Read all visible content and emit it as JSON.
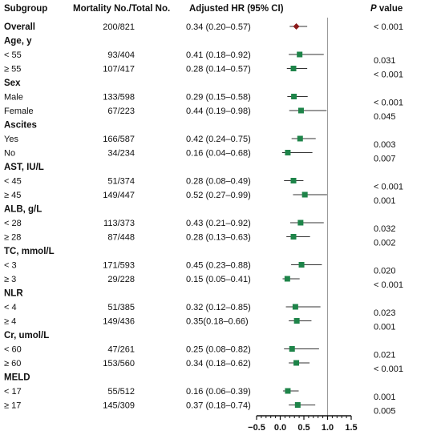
{
  "chart_data": {
    "type": "forest",
    "headers": {
      "subgroup": "Subgroup",
      "counts": "Mortality No./Total No.",
      "hr": "Adjusted HR (95% CI)",
      "p_italic": "P",
      "p_rest": " value"
    },
    "x_ticks": [
      "−0.5",
      "0.0",
      "0.5",
      "1.0",
      "1.5"
    ],
    "x_range": [
      -0.5,
      1.5
    ],
    "reference_line": 1.0,
    "rows": [
      {
        "label": "Overall",
        "bold": true,
        "counts": "200/821",
        "hr_text": "0.34 (0.20–0.57)",
        "hr": 0.34,
        "lo": 0.2,
        "hi": 0.57,
        "p": "< 0.001",
        "overall": true
      },
      {
        "label": "Age, y",
        "bold": true
      },
      {
        "label": "< 55",
        "counts": "93/404",
        "hr_text": "0.41 (0.18–0.92)",
        "hr": 0.41,
        "lo": 0.18,
        "hi": 0.92,
        "p": "0.031"
      },
      {
        "label": "≥ 55",
        "counts": "107/417",
        "hr_text": "0.28 (0.14–0.57)",
        "hr": 0.28,
        "lo": 0.14,
        "hi": 0.57,
        "p": "< 0.001"
      },
      {
        "label": "Sex",
        "bold": true
      },
      {
        "label": "Male",
        "counts": "133/598",
        "hr_text": "0.29 (0.15–0.58)",
        "hr": 0.29,
        "lo": 0.15,
        "hi": 0.58,
        "p": "< 0.001"
      },
      {
        "label": "Female",
        "counts": "67/223",
        "hr_text": "0.44 (0.19–0.98)",
        "hr": 0.44,
        "lo": 0.19,
        "hi": 0.98,
        "p": "0.045"
      },
      {
        "label": "Ascites",
        "bold": true
      },
      {
        "label": "Yes",
        "counts": "166/587",
        "hr_text": "0.42 (0.24–0.75)",
        "hr": 0.42,
        "lo": 0.24,
        "hi": 0.75,
        "p": "0.003"
      },
      {
        "label": "No",
        "counts": "34/234",
        "hr_text": "0.16 (0.04–0.68)",
        "hr": 0.16,
        "lo": 0.04,
        "hi": 0.68,
        "p": "0.007"
      },
      {
        "label": "AST, IU/L",
        "bold": true
      },
      {
        "label": "< 45",
        "counts": "51/374",
        "hr_text": "0.28 (0.08–0.49)",
        "hr": 0.28,
        "lo": 0.08,
        "hi": 0.49,
        "p": "< 0.001"
      },
      {
        "label": "≥ 45",
        "counts": "149/447",
        "hr_text": "0.52 (0.27–0.99)",
        "hr": 0.52,
        "lo": 0.27,
        "hi": 0.99,
        "p": "0.001"
      },
      {
        "label": "ALB, g/L",
        "bold": true
      },
      {
        "label": "< 28",
        "counts": "113/373",
        "hr_text": "0.43 (0.21–0.92)",
        "hr": 0.43,
        "lo": 0.21,
        "hi": 0.92,
        "p": "0.032"
      },
      {
        "label": "≥ 28",
        "counts": "87/448",
        "hr_text": "0.28 (0.13–0.63)",
        "hr": 0.28,
        "lo": 0.13,
        "hi": 0.63,
        "p": "0.002"
      },
      {
        "label": "TC, mmol/L",
        "bold": true
      },
      {
        "label": "< 3",
        "counts": "171/593",
        "hr_text": "0.45 (0.23–0.88)",
        "hr": 0.45,
        "lo": 0.23,
        "hi": 0.88,
        "p": "0.020"
      },
      {
        "label": "≥ 3",
        "counts": "29/228",
        "hr_text": "0.15 (0.05–0.41)",
        "hr": 0.15,
        "lo": 0.05,
        "hi": 0.41,
        "p": "< 0.001"
      },
      {
        "label": "NLR",
        "bold": true
      },
      {
        "label": "< 4",
        "counts": "51/385",
        "hr_text": "0.32 (0.12–0.85)",
        "hr": 0.32,
        "lo": 0.12,
        "hi": 0.85,
        "p": "0.023"
      },
      {
        "label": "≥ 4",
        "counts": "149/436",
        "hr_text": "0.35(0.18–0.66)",
        "hr": 0.35,
        "lo": 0.18,
        "hi": 0.66,
        "p": "0.001"
      },
      {
        "label": "Cr, umol/L",
        "bold": true
      },
      {
        "label": "< 60",
        "counts": "47/261",
        "hr_text": "0.25 (0.08–0.82)",
        "hr": 0.25,
        "lo": 0.08,
        "hi": 0.82,
        "p": "0.021"
      },
      {
        "label": "≥ 60",
        "counts": "153/560",
        "hr_text": "0.34 (0.18–0.62)",
        "hr": 0.34,
        "lo": 0.18,
        "hi": 0.62,
        "p": "< 0.001"
      },
      {
        "label": "MELD",
        "bold": true
      },
      {
        "label": "< 17",
        "counts": "55/512",
        "hr_text": "0.16 (0.06–0.39)",
        "hr": 0.16,
        "lo": 0.06,
        "hi": 0.39,
        "p": "0.001"
      },
      {
        "label": "≥ 17",
        "counts": "145/309",
        "hr_text": "0.37 (0.18–0.74)",
        "hr": 0.37,
        "lo": 0.18,
        "hi": 0.74,
        "p": "0.005"
      }
    ],
    "colors": {
      "overall_marker": "#8b1a1a",
      "subgroup_marker": "#1e8449",
      "ci_line": "#333333",
      "reference_line": "#9a9a9a",
      "axis": "#111111"
    }
  }
}
